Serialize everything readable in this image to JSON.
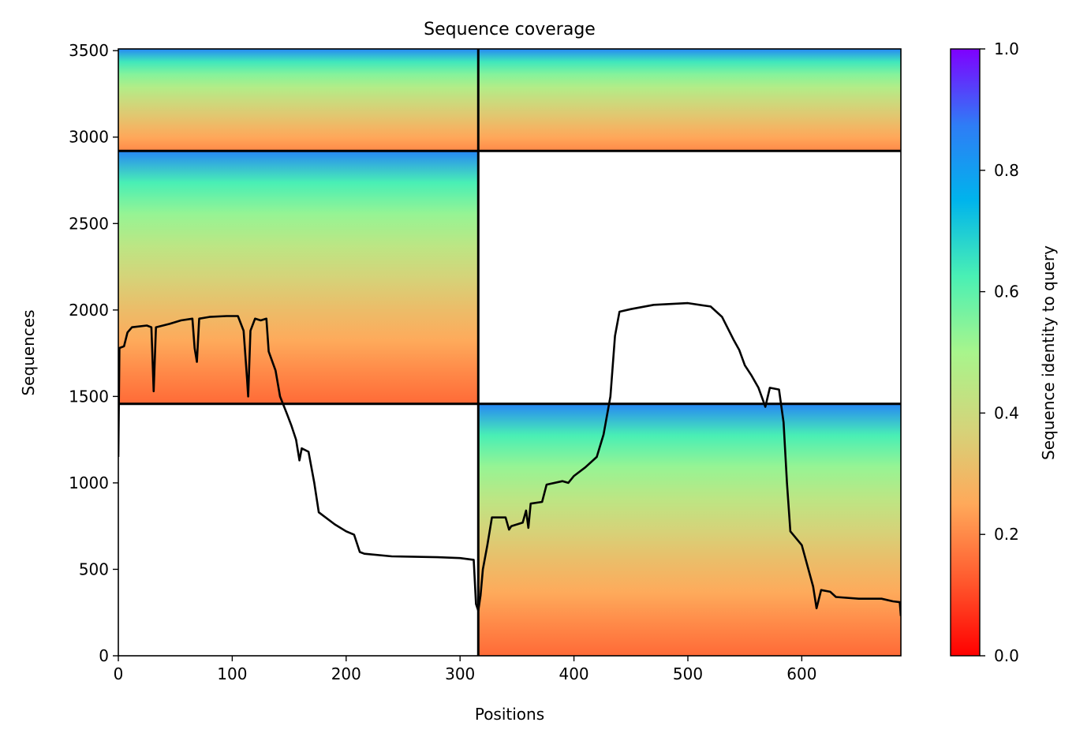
{
  "chart_data": {
    "type": "heatmap",
    "title": "Sequence coverage",
    "xlabel": "Positions",
    "ylabel": "Sequences",
    "xlim": [
      0,
      687
    ],
    "ylim": [
      0,
      3510
    ],
    "x_ticks": [
      0,
      100,
      200,
      300,
      400,
      500,
      600
    ],
    "y_ticks": [
      0,
      500,
      1000,
      1500,
      2000,
      2500,
      3000,
      3500
    ],
    "colorbar": {
      "label": "Sequence identity to query",
      "colormap": "rainbow",
      "ticks": [
        0.0,
        0.2,
        0.4,
        0.6,
        0.8,
        1.0
      ],
      "tick_labels": [
        "0.0",
        "0.2",
        "0.4",
        "0.6",
        "0.8",
        "1.0"
      ],
      "colors": [
        "#ff0000",
        "#ff5a2e",
        "#ffa95a",
        "#d4d47a",
        "#a8f58c",
        "#4af0b4",
        "#00b4ec",
        "#2f7cf6",
        "#7f00ff"
      ]
    },
    "block_separators": {
      "positions": [
        316
      ],
      "sequences": [
        1457,
        2920
      ]
    },
    "coverage_blocks": [
      {
        "name": "block-1",
        "x_range": [
          0,
          316
        ],
        "y_range": [
          2920,
          3510
        ],
        "identity_top": 0.85,
        "identity_bottom": 0.2
      },
      {
        "name": "block-2",
        "x_range": [
          316,
          687
        ],
        "y_range": [
          2920,
          3510
        ],
        "identity_top": 0.85,
        "identity_bottom": 0.2
      },
      {
        "name": "block-3",
        "x_range": [
          0,
          316
        ],
        "y_range": [
          1457,
          2920
        ],
        "identity_top": 0.85,
        "identity_bottom": 0.15
      },
      {
        "name": "block-4",
        "x_range": [
          316,
          687
        ],
        "y_range": [
          0,
          1457
        ],
        "identity_top": 0.85,
        "identity_bottom": 0.15
      }
    ],
    "coverage_line": {
      "color": "#000000",
      "points": [
        [
          0,
          1150
        ],
        [
          1,
          1780
        ],
        [
          5,
          1790
        ],
        [
          8,
          1870
        ],
        [
          12,
          1900
        ],
        [
          25,
          1910
        ],
        [
          29,
          1900
        ],
        [
          31,
          1530
        ],
        [
          33,
          1900
        ],
        [
          45,
          1920
        ],
        [
          55,
          1940
        ],
        [
          65,
          1950
        ],
        [
          67,
          1780
        ],
        [
          69,
          1700
        ],
        [
          71,
          1950
        ],
        [
          80,
          1960
        ],
        [
          95,
          1965
        ],
        [
          105,
          1965
        ],
        [
          110,
          1880
        ],
        [
          113,
          1600
        ],
        [
          114,
          1500
        ],
        [
          116,
          1880
        ],
        [
          120,
          1950
        ],
        [
          125,
          1940
        ],
        [
          130,
          1950
        ],
        [
          132,
          1760
        ],
        [
          138,
          1650
        ],
        [
          142,
          1500
        ],
        [
          148,
          1400
        ],
        [
          152,
          1330
        ],
        [
          156,
          1250
        ],
        [
          159,
          1130
        ],
        [
          161,
          1200
        ],
        [
          167,
          1180
        ],
        [
          172,
          1000
        ],
        [
          176,
          830
        ],
        [
          190,
          760
        ],
        [
          200,
          720
        ],
        [
          207,
          700
        ],
        [
          212,
          600
        ],
        [
          216,
          590
        ],
        [
          240,
          575
        ],
        [
          280,
          570
        ],
        [
          300,
          565
        ],
        [
          312,
          555
        ],
        [
          314,
          300
        ],
        [
          316,
          260
        ],
        [
          318,
          350
        ],
        [
          320,
          500
        ],
        [
          324,
          640
        ],
        [
          328,
          800
        ],
        [
          340,
          800
        ],
        [
          343,
          730
        ],
        [
          345,
          750
        ],
        [
          355,
          770
        ],
        [
          358,
          840
        ],
        [
          360,
          740
        ],
        [
          362,
          880
        ],
        [
          372,
          890
        ],
        [
          376,
          990
        ],
        [
          390,
          1010
        ],
        [
          395,
          1000
        ],
        [
          400,
          1040
        ],
        [
          410,
          1090
        ],
        [
          420,
          1150
        ],
        [
          426,
          1280
        ],
        [
          432,
          1500
        ],
        [
          436,
          1850
        ],
        [
          440,
          1990
        ],
        [
          450,
          2005
        ],
        [
          470,
          2030
        ],
        [
          500,
          2040
        ],
        [
          520,
          2020
        ],
        [
          525,
          1990
        ],
        [
          530,
          1960
        ],
        [
          540,
          1830
        ],
        [
          545,
          1770
        ],
        [
          550,
          1680
        ],
        [
          556,
          1620
        ],
        [
          562,
          1550
        ],
        [
          568,
          1440
        ],
        [
          572,
          1550
        ],
        [
          580,
          1540
        ],
        [
          584,
          1350
        ],
        [
          587,
          1000
        ],
        [
          590,
          720
        ],
        [
          600,
          640
        ],
        [
          610,
          400
        ],
        [
          613,
          275
        ],
        [
          617,
          380
        ],
        [
          625,
          370
        ],
        [
          630,
          340
        ],
        [
          650,
          330
        ],
        [
          670,
          330
        ],
        [
          680,
          315
        ],
        [
          686,
          310
        ],
        [
          687,
          230
        ]
      ]
    }
  }
}
